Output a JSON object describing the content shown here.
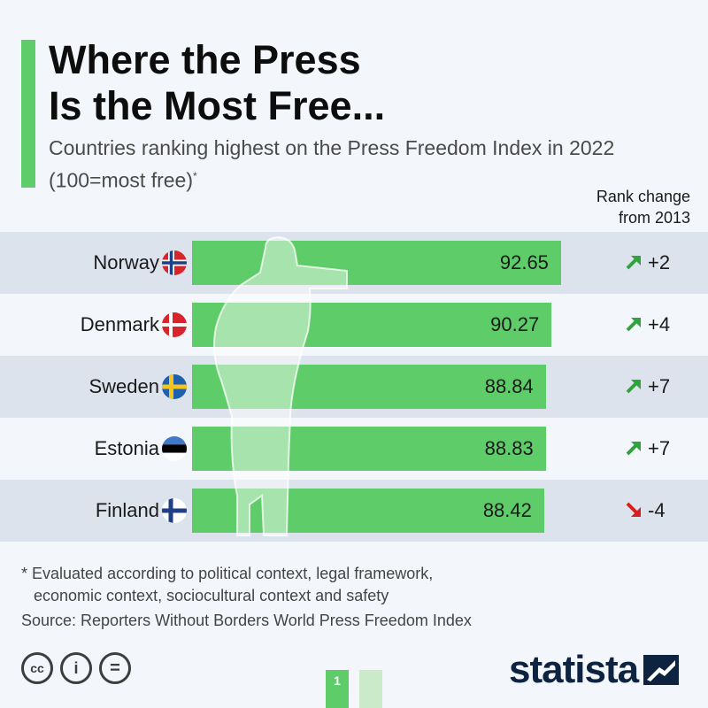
{
  "header": {
    "title_line1": "Where the Press",
    "title_line2": "Is the Most Free...",
    "subtitle": "Countries ranking highest on the Press Freedom Index in 2022 (100=most free)",
    "subtitle_mark": "*",
    "rank_change_line1": "Rank change",
    "rank_change_line2": "from 2013"
  },
  "colors": {
    "accent": "#5fcc6a",
    "up_arrow": "#2fa33c",
    "down_arrow": "#d42020",
    "row_alt": "#dde3ec",
    "brand": "#0d2340"
  },
  "chart_data": {
    "type": "bar",
    "orientation": "horizontal",
    "title": "Where the Press Is the Most Free...",
    "subtitle": "Countries ranking highest on the Press Freedom Index in 2022 (100=most free)*",
    "categories": [
      "Norway",
      "Denmark",
      "Sweden",
      "Estonia",
      "Finland"
    ],
    "values": [
      92.65,
      90.27,
      88.84,
      88.83,
      88.42
    ],
    "value_labels": [
      "92.65",
      "90.27",
      "88.84",
      "88.83",
      "88.42"
    ],
    "flags": [
      "norway-flag-icon",
      "denmark-flag-icon",
      "sweden-flag-icon",
      "estonia-flag-icon",
      "finland-flag-icon"
    ],
    "rank_change": [
      "+2",
      "+4",
      "+7",
      "+7",
      "-4"
    ],
    "rank_direction": [
      "up",
      "up",
      "up",
      "up",
      "down"
    ],
    "xlim": [
      0,
      100
    ],
    "grid": false,
    "legend": "none"
  },
  "footer": {
    "note_line1": "* Evaluated according to political context, legal framework,",
    "note_line2": "economic context, sociocultural context and safety",
    "source": "Source: Reporters Without Borders World Press Freedom Index",
    "license_icons": [
      "cc-icon",
      "attribution-icon",
      "no-derivatives-icon"
    ],
    "license_glyphs": [
      "cc",
      "i",
      "="
    ],
    "page_number": "1",
    "brand": "statista"
  }
}
